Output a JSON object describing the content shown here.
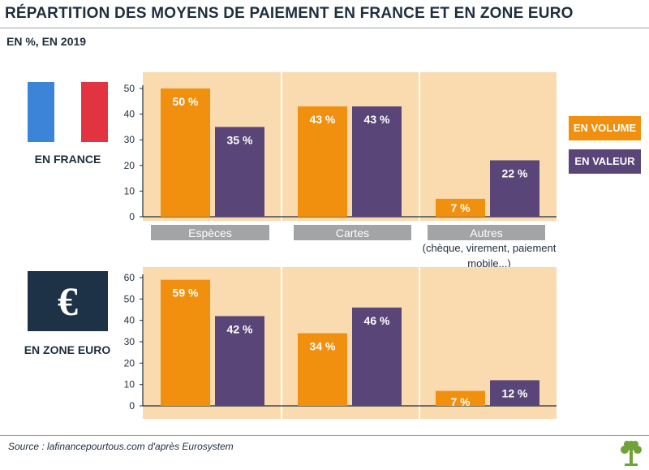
{
  "title": "RÉPARTITION DES MOYENS DE PAIEMENT EN FRANCE ET EN ZONE EURO",
  "subtitle": "EN %, EN 2019",
  "france_label": "EN FRANCE",
  "eurozone_label": "EN ZONE EURO",
  "euro_symbol": "€",
  "legend": {
    "volume": "EN VOLUME",
    "value": "EN VALEUR"
  },
  "other_note": "(chèque, virement, paiement mobile...)",
  "source": "Source : lafinancepourtous.com d'après Eurosystem",
  "colors": {
    "volume": "#f0900e",
    "value": "#594578",
    "panel": "#f9dbaf",
    "flag_blue": "#3b84d8",
    "flag_red": "#e23340",
    "euro_box": "#1d3147"
  },
  "chart_data": [
    {
      "type": "bar",
      "region": "EN FRANCE",
      "categories": [
        "Espèces",
        "Cartes",
        "Autres"
      ],
      "series": [
        {
          "name": "EN VOLUME",
          "values": [
            50,
            43,
            7
          ],
          "labels": [
            "50 %",
            "43 %",
            "7 %"
          ]
        },
        {
          "name": "EN VALEUR",
          "values": [
            35,
            43,
            22
          ],
          "labels": [
            "35 %",
            "43 %",
            "22 %"
          ]
        }
      ],
      "yticks": [
        "0",
        "10",
        "20",
        "30",
        "40",
        "50"
      ],
      "ylim": [
        0,
        50
      ]
    },
    {
      "type": "bar",
      "region": "EN ZONE EURO",
      "categories": [
        "Espèces",
        "Cartes",
        "Autres"
      ],
      "series": [
        {
          "name": "EN VOLUME",
          "values": [
            59,
            34,
            7
          ],
          "labels": [
            "59 %",
            "34 %",
            "7 %"
          ]
        },
        {
          "name": "EN VALEUR",
          "values": [
            42,
            46,
            12
          ],
          "labels": [
            "42 %",
            "46 %",
            "12 %"
          ]
        }
      ],
      "yticks": [
        "0",
        "10",
        "20",
        "30",
        "40",
        "50",
        "60"
      ],
      "ylim": [
        0,
        60
      ]
    }
  ]
}
